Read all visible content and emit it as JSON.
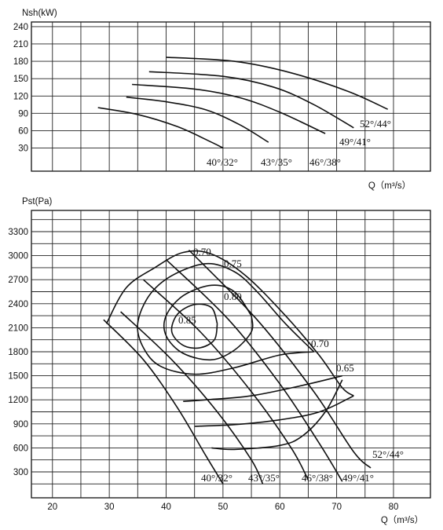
{
  "chart_data": [
    {
      "type": "line",
      "title": "",
      "ylabel": "Nsh(kW)",
      "xlabel": "Q（m³/s）",
      "yticks": [
        30,
        60,
        90,
        120,
        150,
        180,
        210,
        240
      ],
      "ylim": [
        0,
        240
      ],
      "xlim": [
        15,
        85
      ],
      "grid": true,
      "series": [
        {
          "name": "40°/32°",
          "points": [
            [
              28,
              100
            ],
            [
              35,
              88
            ],
            [
              42,
              67
            ],
            [
              48,
              40
            ],
            [
              50,
              30
            ]
          ]
        },
        {
          "name": "43°/35°",
          "points": [
            [
              33,
              118
            ],
            [
              40,
              110
            ],
            [
              47,
              96
            ],
            [
              53,
              70
            ],
            [
              58,
              40
            ]
          ]
        },
        {
          "name": "46°/38°",
          "points": [
            [
              34,
              140
            ],
            [
              45,
              132
            ],
            [
              53,
              117
            ],
            [
              60,
              92
            ],
            [
              68,
              55
            ]
          ]
        },
        {
          "name": "49°/41°",
          "points": [
            [
              37,
              162
            ],
            [
              50,
              154
            ],
            [
              59,
              135
            ],
            [
              66,
              105
            ],
            [
              73,
              65
            ]
          ]
        },
        {
          "name": "52°/44°",
          "points": [
            [
              40,
              187
            ],
            [
              52,
              180
            ],
            [
              62,
              160
            ],
            [
              72,
              128
            ],
            [
              79,
              97
            ]
          ]
        }
      ],
      "series_labels": [
        "40°/32°",
        "43°/35°",
        "46°/38°",
        "49°/41°",
        "52°/44°"
      ]
    },
    {
      "type": "line",
      "title": "",
      "ylabel": "Pst(Pa)",
      "xlabel": "Q（m³/s）",
      "xticks": [
        20,
        30,
        40,
        50,
        60,
        70,
        80
      ],
      "yticks": [
        300,
        600,
        900,
        1200,
        1500,
        1800,
        2100,
        2400,
        2700,
        3000,
        3300
      ],
      "ylim": [
        0,
        3600
      ],
      "xlim": [
        15,
        85
      ],
      "grid": true,
      "series": [
        {
          "name": "40°/32°",
          "points": [
            [
              29,
              2200
            ],
            [
              36,
              1700
            ],
            [
              42,
              1100
            ],
            [
              47,
              500
            ],
            [
              50,
              150
            ]
          ]
        },
        {
          "name": "43°/35°",
          "points": [
            [
              32,
              2300
            ],
            [
              41,
              1700
            ],
            [
              49,
              1050
            ],
            [
              55,
              450
            ],
            [
              57,
              150
            ]
          ]
        },
        {
          "name": "46°/38°",
          "points": [
            [
              36,
              2700
            ],
            [
              46,
              2050
            ],
            [
              55,
              1300
            ],
            [
              62,
              600
            ],
            [
              65,
              200
            ]
          ]
        },
        {
          "name": "49°/41°",
          "points": [
            [
              40,
              2950
            ],
            [
              51,
              2200
            ],
            [
              60,
              1400
            ],
            [
              67,
              650
            ],
            [
              71,
              180
            ]
          ]
        },
        {
          "name": "52°/44°",
          "points": [
            [
              44,
              3070
            ],
            [
              56,
              2200
            ],
            [
              66,
              1300
            ],
            [
              73,
              550
            ],
            [
              76,
              350
            ]
          ]
        }
      ],
      "series_labels": [
        "40°/32°",
        "43°/35°",
        "46°/38°",
        "49°/41°",
        "52°/44°"
      ],
      "efficiency_contours": [
        {
          "label": "0.70",
          "points": [
            [
              29.5,
              2150
            ],
            [
              33,
              2600
            ],
            [
              38,
              2850
            ],
            [
              43,
              3040
            ],
            [
              48,
              3020
            ],
            [
              54,
              2750
            ],
            [
              61,
              2250
            ],
            [
              67,
              1750
            ],
            [
              71,
              1350
            ],
            [
              73,
              1250
            ]
          ]
        },
        {
          "label": "0.75",
          "points": [
            [
              66,
              1800
            ],
            [
              61,
              2150
            ],
            [
              56,
              2550
            ],
            [
              52,
              2800
            ],
            [
              47,
              2900
            ],
            [
              41,
              2750
            ],
            [
              37,
              2500
            ],
            [
              35,
              2150
            ],
            [
              36,
              1850
            ],
            [
              39,
              1620
            ],
            [
              45,
              1520
            ],
            [
              52,
              1600
            ],
            [
              60,
              1760
            ],
            [
              66,
              1800
            ]
          ]
        },
        {
          "label": "0.80",
          "points": [
            [
              55,
              2250
            ],
            [
              52,
              2550
            ],
            [
              48,
              2630
            ],
            [
              43,
              2500
            ],
            [
              40,
              2250
            ],
            [
              40,
              2000
            ],
            [
              43,
              1780
            ],
            [
              48,
              1700
            ],
            [
              52,
              1820
            ],
            [
              55,
              2050
            ],
            [
              55,
              2250
            ]
          ]
        },
        {
          "label": "0.85",
          "points": [
            [
              49,
              2150
            ],
            [
              48,
              2350
            ],
            [
              45,
              2390
            ],
            [
              42,
              2270
            ],
            [
              41,
              2050
            ],
            [
              43,
              1880
            ],
            [
              46,
              1850
            ],
            [
              48.5,
              1950
            ],
            [
              49,
              2150
            ]
          ]
        },
        {
          "label": "0.70",
          "points": [
            [
              71,
              1500
            ],
            [
              64,
              1380
            ],
            [
              55,
              1250
            ],
            [
              47,
              1200
            ],
            [
              43,
              1180
            ]
          ]
        },
        {
          "label": "0.65",
          "points": [
            [
              73,
              1250
            ],
            [
              67,
              1050
            ],
            [
              60,
              950
            ],
            [
              52,
              890
            ],
            [
              45,
              870
            ]
          ]
        },
        {
          "label": "",
          "points": [
            [
              71,
              1450
            ],
            [
              68,
              1050
            ],
            [
              64,
              750
            ],
            [
              60,
              630
            ],
            [
              52,
              580
            ],
            [
              48,
              600
            ]
          ]
        }
      ]
    }
  ]
}
